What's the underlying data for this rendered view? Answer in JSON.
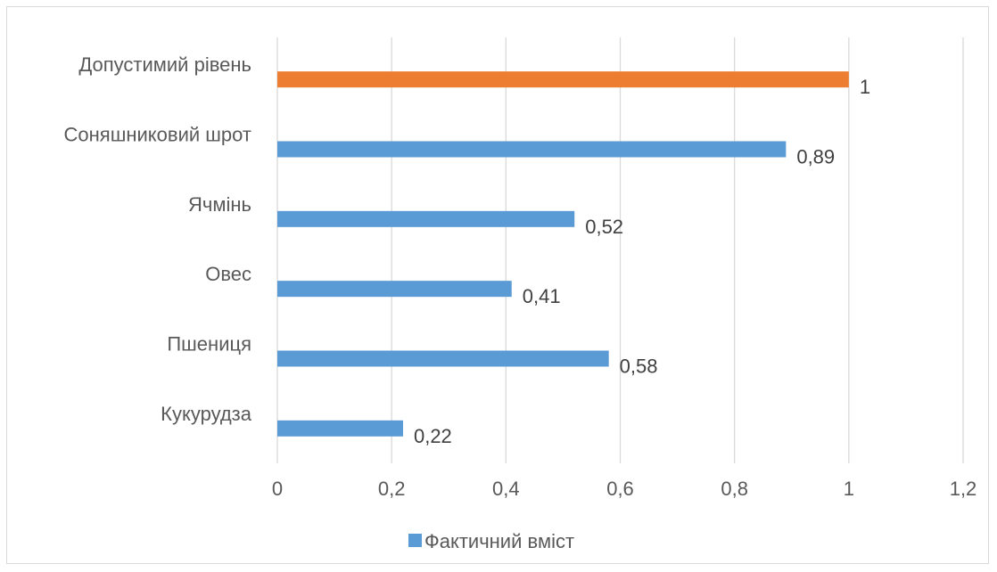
{
  "chart_data": {
    "type": "bar",
    "orientation": "horizontal",
    "categories": [
      "Допустимий рівень",
      "Соняшниковий шрот",
      "Ячмінь",
      "Овес",
      "Пшениця",
      "Кукурудза"
    ],
    "series": [
      {
        "name": "Фактичний вміст",
        "values": [
          1,
          0.89,
          0.52,
          0.41,
          0.58,
          0.22
        ],
        "data_labels": [
          "1",
          "0,89",
          "0,52",
          "0,41",
          "0,58",
          "0,22"
        ],
        "colors": [
          "#ED7D31",
          "#5B9BD5",
          "#5B9BD5",
          "#5B9BD5",
          "#5B9BD5",
          "#5B9BD5"
        ]
      }
    ],
    "xlim": [
      0,
      1.2
    ],
    "x_ticks": [
      0,
      0.2,
      0.4,
      0.6,
      0.8,
      1,
      1.2
    ],
    "x_tick_labels": [
      "0",
      "0,2",
      "0,4",
      "0,6",
      "0,8",
      "1",
      "1,2"
    ],
    "grid": "vertical",
    "legend": {
      "position": "bottom",
      "label": "Фактичний вміст",
      "color": "#5B9BD5"
    },
    "title": "",
    "xlabel": "",
    "ylabel": ""
  }
}
